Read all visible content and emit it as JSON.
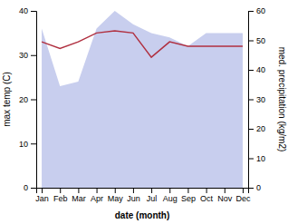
{
  "chart_data": {
    "type": "line",
    "categories": [
      "Jan",
      "Feb",
      "Mar",
      "Apr",
      "May",
      "Jun",
      "Jul",
      "Aug",
      "Sep",
      "Oct",
      "Nov",
      "Dec"
    ],
    "series": [
      {
        "type": "area",
        "color": "#c8ceee",
        "values": [
          36,
          23,
          24,
          36,
          40,
          37,
          35,
          34,
          32,
          35,
          35,
          35
        ]
      },
      {
        "type": "line",
        "color": "#b03040",
        "values": [
          33,
          31.5,
          33,
          35,
          35.5,
          35,
          29.5,
          33,
          32,
          32,
          32,
          32
        ]
      }
    ],
    "xlabel": "date (month)",
    "ylabel": "max temp (C)",
    "y2label": "med. precipitation (kg/m2)",
    "ylim": [
      0,
      40
    ],
    "yticks": [
      0,
      10,
      20,
      30,
      40
    ],
    "y2lim": [
      0,
      60
    ],
    "y2ticks": [
      0,
      10,
      20,
      30,
      40,
      50,
      60
    ],
    "grid": false
  }
}
